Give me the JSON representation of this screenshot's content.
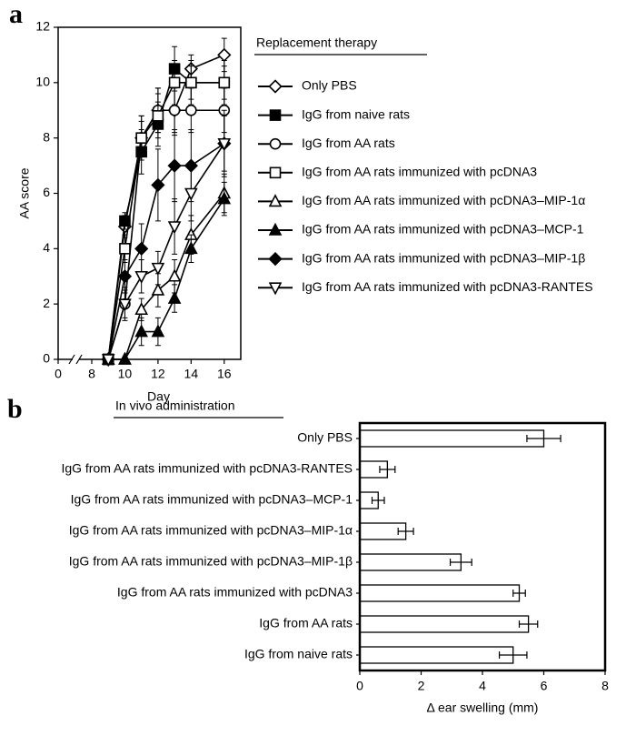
{
  "chart_data": [
    {
      "type": "line",
      "panel_label": "a",
      "x_label": "Day",
      "y_label": "AA score",
      "legend_title": "Replacement therapy",
      "axis_break": true,
      "x": [
        9,
        10,
        11,
        12,
        13,
        14,
        16
      ],
      "xlim": [
        0,
        17
      ],
      "xticks": [
        0,
        8,
        10,
        12,
        14,
        16
      ],
      "ylim": [
        0,
        12
      ],
      "yticks": [
        0,
        2,
        4,
        6,
        8,
        10,
        12
      ],
      "series": [
        {
          "name": "Only PBS",
          "color": "#000000",
          "marker": "diamond",
          "filled": false,
          "values": [
            0,
            4.8,
            8,
            9,
            9,
            10.5,
            11
          ],
          "errors": [
            0,
            0.4,
            0.6,
            0.8,
            0.9,
            0.5,
            0.6
          ]
        },
        {
          "name": "IgG from naive rats",
          "color": "#000000",
          "marker": "square",
          "filled": true,
          "values": [
            0,
            5,
            7.5,
            8.5,
            10.5,
            10,
            10
          ],
          "errors": [
            0,
            0.3,
            0.8,
            0.8,
            0.8,
            0.6,
            0.6
          ]
        },
        {
          "name": "IgG from AA rats",
          "color": "#000000",
          "marker": "circle",
          "filled": false,
          "values": [
            0,
            2,
            8,
            9,
            9,
            9,
            9
          ],
          "errors": [
            0,
            0.5,
            0.8,
            0.8,
            0.8,
            0.8,
            0.8
          ]
        },
        {
          "name": "IgG from AA rats immunized with pcDNA3",
          "color": "#000000",
          "marker": "square",
          "filled": false,
          "values": [
            0,
            4,
            8,
            8.8,
            10,
            10,
            10
          ],
          "errors": [
            0,
            0.5,
            0.8,
            0.8,
            0.8,
            0.8,
            0.8
          ]
        },
        {
          "name": "IgG from AA rats immunized with pcDNA3–MIP-1α",
          "color": "#000000",
          "marker": "triangle-up",
          "filled": false,
          "values": [
            0,
            0,
            1.8,
            2.5,
            3,
            4.5,
            6
          ],
          "errors": [
            0,
            0,
            0.4,
            0.6,
            0.6,
            0.7,
            0.7
          ]
        },
        {
          "name": "IgG from AA rats immunized with pcDNA3–MCP-1",
          "color": "#000000",
          "marker": "triangle-up",
          "filled": true,
          "values": [
            0,
            0,
            1,
            1,
            2.2,
            4,
            5.8
          ],
          "errors": [
            0,
            0,
            0.5,
            0.5,
            0.5,
            0.5,
            0.6
          ]
        },
        {
          "name": "IgG from AA rats immunized with pcDNA3–MIP-1β",
          "color": "#000000",
          "marker": "diamond",
          "filled": true,
          "values": [
            0,
            3,
            4,
            6.3,
            7,
            7,
            7.8
          ],
          "errors": [
            0,
            0.6,
            0.9,
            1.3,
            1.3,
            1.3,
            1.2
          ]
        },
        {
          "name": "IgG from AA rats immunized with pcDNA3-RANTES",
          "color": "#000000",
          "marker": "triangle-down",
          "filled": false,
          "values": [
            0,
            2,
            3,
            3.3,
            4.8,
            6,
            7.8
          ],
          "errors": [
            0,
            0.6,
            0.6,
            0.6,
            1,
            1,
            1
          ]
        }
      ]
    },
    {
      "type": "hbar",
      "panel_label": "b",
      "title": "In vivo administration",
      "x_label": "Δ ear swelling (mm)",
      "categories": [
        "Only PBS",
        "IgG from AA rats immunized with pcDNA3-RANTES",
        "IgG from AA rats immunized with pcDNA3–MCP-1",
        "IgG from AA rats immunized with pcDNA3–MIP-1α",
        "IgG from AA rats immunized with pcDNA3–MIP-1β",
        "IgG from AA rats immunized with pcDNA3",
        "IgG from AA rats",
        "IgG from naive rats"
      ],
      "values": [
        6.0,
        0.9,
        0.6,
        1.5,
        3.3,
        5.2,
        5.5,
        5.0
      ],
      "errors": [
        0.55,
        0.25,
        0.2,
        0.25,
        0.35,
        0.2,
        0.3,
        0.45
      ],
      "color": "#ffffff",
      "xlim": [
        0,
        8
      ],
      "xticks": [
        0,
        2,
        4,
        6,
        8
      ]
    }
  ]
}
